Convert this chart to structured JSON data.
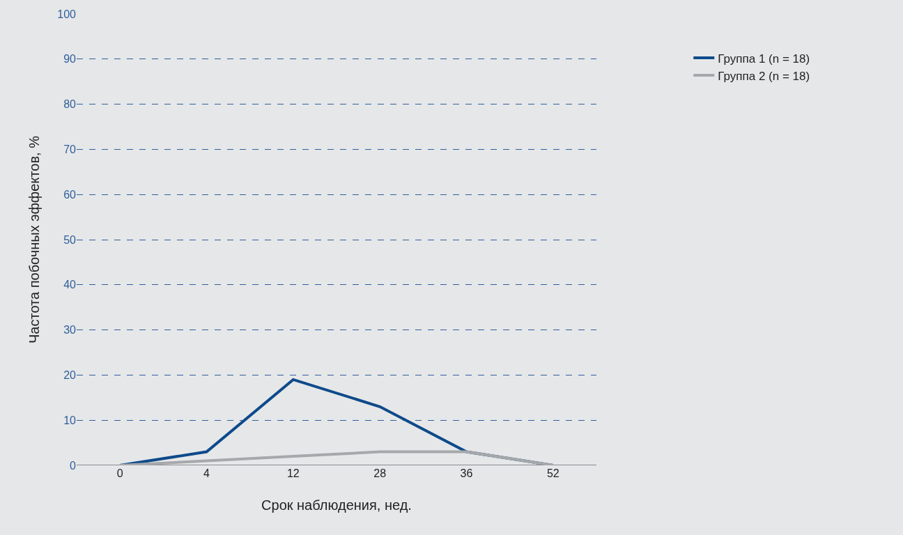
{
  "chart_data": {
    "type": "line",
    "xlabel": "Срок наблюдения, нед.",
    "ylabel": "Частота побочных эффектов, %",
    "categories": [
      "0",
      "4",
      "12",
      "28",
      "36",
      "52"
    ],
    "series": [
      {
        "name": "Группа 1 (n = 18)",
        "color": "#0d4a8a",
        "values": [
          0,
          3,
          19,
          13,
          3,
          0
        ]
      },
      {
        "name": "Группа 2 (n = 18)",
        "color": "#a6a8ab",
        "values": [
          0,
          1,
          2,
          3,
          3,
          0
        ]
      }
    ],
    "ylim": [
      0,
      100
    ],
    "yticks": [
      0,
      10,
      20,
      30,
      40,
      50,
      60,
      70,
      80,
      90,
      100
    ],
    "grid": "y",
    "legend": "top right",
    "marker": "none",
    "line_style": "solid"
  }
}
